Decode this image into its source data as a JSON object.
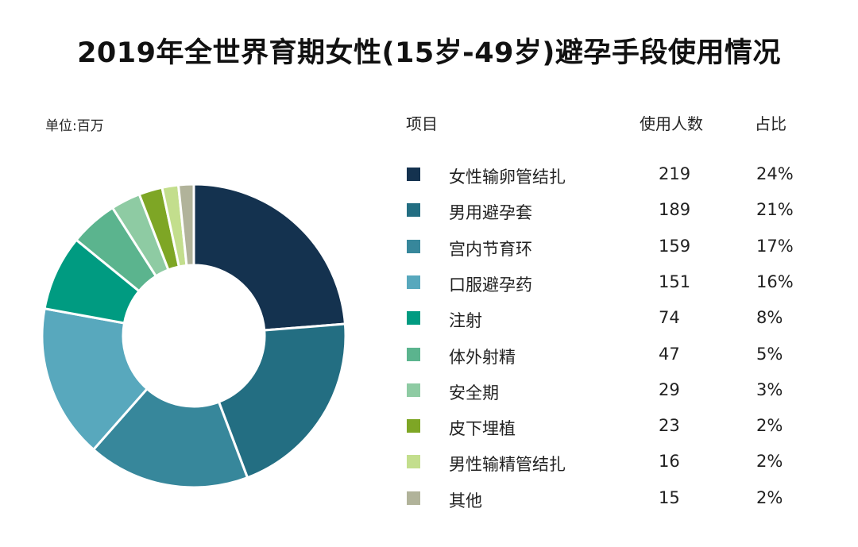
{
  "title": "2019年全世界育期女性(15岁-49岁)避孕手段使用情况",
  "unit_label": "单位:百万",
  "table_headers": {
    "item": "项目",
    "count": "使用人数",
    "share": "占比"
  },
  "chart_data": {
    "type": "pie",
    "donut": true,
    "categories": [
      "女性输卵管结扎",
      "男用避孕套",
      "宫内节育环",
      "口服避孕药",
      "注射",
      "体外射精",
      "安全期",
      "皮下埋植",
      "男性输精管结扎",
      "其他"
    ],
    "values": [
      219,
      189,
      159,
      151,
      74,
      47,
      29,
      23,
      16,
      15
    ],
    "percent_labels": [
      "24%",
      "21%",
      "17%",
      "16%",
      "8%",
      "5%",
      "3%",
      "2%",
      "2%",
      "2%"
    ],
    "colors": [
      "#14324f",
      "#236e82",
      "#37879b",
      "#58a8bd",
      "#009b81",
      "#5bb48e",
      "#8ecba3",
      "#7ea625",
      "#c3de8d",
      "#b1b39a"
    ],
    "legend_position": "right"
  }
}
